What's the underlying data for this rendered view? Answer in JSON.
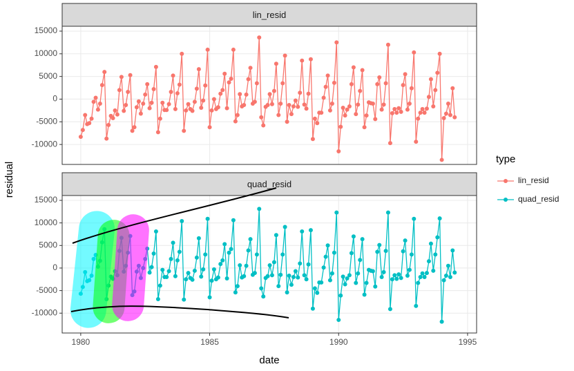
{
  "chart_data": {
    "type": "line",
    "x_label": "date",
    "y_label": "residual",
    "legend_title": "type",
    "x": [
      1980.0,
      1980.08,
      1980.17,
      1980.25,
      1980.33,
      1980.42,
      1980.5,
      1980.58,
      1980.67,
      1980.75,
      1980.83,
      1980.92,
      1981.0,
      1981.08,
      1981.17,
      1981.25,
      1981.33,
      1981.42,
      1981.5,
      1981.58,
      1981.67,
      1981.75,
      1981.83,
      1981.92,
      1982.0,
      1982.08,
      1982.17,
      1982.25,
      1982.33,
      1982.42,
      1982.5,
      1982.58,
      1982.67,
      1982.75,
      1982.83,
      1982.92,
      1983.0,
      1983.08,
      1983.17,
      1983.25,
      1983.33,
      1983.42,
      1983.5,
      1983.58,
      1983.67,
      1983.75,
      1983.83,
      1983.92,
      1984.0,
      1984.08,
      1984.17,
      1984.25,
      1984.33,
      1984.42,
      1984.5,
      1984.58,
      1984.67,
      1984.75,
      1984.83,
      1984.92,
      1985.0,
      1985.08,
      1985.17,
      1985.25,
      1985.33,
      1985.42,
      1985.5,
      1985.58,
      1985.67,
      1985.75,
      1985.83,
      1985.92,
      1986.0,
      1986.08,
      1986.17,
      1986.25,
      1986.33,
      1986.42,
      1986.5,
      1986.58,
      1986.67,
      1986.75,
      1986.83,
      1986.92,
      1987.0,
      1987.08,
      1987.17,
      1987.25,
      1987.33,
      1987.42,
      1987.5,
      1987.58,
      1987.67,
      1987.75,
      1987.83,
      1987.92,
      1988.0,
      1988.08,
      1988.17,
      1988.25,
      1988.33,
      1988.42,
      1988.5,
      1988.58,
      1988.67,
      1988.75,
      1988.83,
      1988.92,
      1989.0,
      1989.08,
      1989.17,
      1989.25,
      1989.33,
      1989.42,
      1989.5,
      1989.58,
      1989.67,
      1989.75,
      1989.83,
      1989.92,
      1990.0,
      1990.08,
      1990.17,
      1990.25,
      1990.33,
      1990.42,
      1990.5,
      1990.58,
      1990.67,
      1990.75,
      1990.83,
      1990.92,
      1991.0,
      1991.08,
      1991.17,
      1991.25,
      1991.33,
      1991.42,
      1991.5,
      1991.58,
      1991.67,
      1991.75,
      1991.83,
      1991.92,
      1992.0,
      1992.08,
      1992.17,
      1992.25,
      1992.33,
      1992.42,
      1992.5,
      1992.58,
      1992.67,
      1992.75,
      1992.83,
      1992.92,
      1993.0,
      1993.08,
      1993.17,
      1993.25,
      1993.33,
      1993.42,
      1993.5,
      1993.58,
      1993.67,
      1993.75,
      1993.83,
      1993.92,
      1994.0,
      1994.08,
      1994.17,
      1994.25,
      1994.33,
      1994.42,
      1994.5
    ],
    "series": [
      {
        "name": "lin_resid",
        "color": "#F8766D",
        "values": [
          -8300,
          -6800,
          -3500,
          -5500,
          -5300,
          -4300,
          -600,
          300,
          -2300,
          -1000,
          3100,
          6000,
          -8700,
          -5700,
          -3700,
          -4200,
          -2500,
          -3400,
          2000,
          4900,
          -2600,
          -1300,
          1600,
          5300,
          -7000,
          -6200,
          -1800,
          -500,
          -3200,
          -1000,
          1000,
          3300,
          -2000,
          -800,
          2200,
          7100,
          -7300,
          -4300,
          -800,
          -2400,
          -2400,
          -1100,
          1600,
          5200,
          -2200,
          1300,
          3200,
          10000,
          -7000,
          -2500,
          -1100,
          -2200,
          -2600,
          -600,
          2300,
          6600,
          -1900,
          -300,
          3000,
          10900,
          -6200,
          -2500,
          0,
          -2200,
          -1800,
          1200,
          2000,
          5600,
          -2000,
          3700,
          4500,
          10900,
          -4900,
          -3500,
          1100,
          -1600,
          -1300,
          1000,
          4400,
          6900,
          -1000,
          -600,
          3500,
          13600,
          -4000,
          -5800,
          -1700,
          -1300,
          1100,
          -1100,
          1800,
          7800,
          -3500,
          -1000,
          3500,
          9600,
          -5000,
          -1300,
          -3300,
          -1600,
          -300,
          -1700,
          1400,
          8500,
          -1200,
          -2100,
          1200,
          8800,
          -8800,
          -4300,
          -5300,
          -3000,
          -3000,
          300,
          2700,
          5200,
          -2500,
          -1000,
          3600,
          12500,
          -11500,
          -6100,
          -1900,
          -3600,
          -2300,
          -1600,
          3300,
          7000,
          -3300,
          -1200,
          1800,
          6400,
          -6200,
          -3600,
          -700,
          -900,
          -1000,
          -4400,
          3300,
          4800,
          -2300,
          -1200,
          3500,
          12000,
          -9700,
          -3100,
          -2200,
          -3000,
          -2000,
          -2800,
          3100,
          5500,
          -2300,
          -1000,
          2400,
          10300,
          -9400,
          -4300,
          -3000,
          -2200,
          -3000,
          -2100,
          500,
          4400,
          -1600,
          2000,
          5800,
          10000,
          -13400,
          -4200,
          -3200,
          -1000,
          -3500,
          2400,
          -4000
        ]
      },
      {
        "name": "quad_resid",
        "color": "#00BFC4",
        "values": [
          -5700,
          -4200,
          -900,
          -2900,
          -2700,
          -1700,
          2000,
          2900,
          300,
          1600,
          5700,
          8600,
          -6900,
          -3900,
          -1900,
          -2400,
          -700,
          -1600,
          3800,
          6700,
          -800,
          500,
          3400,
          7100,
          -6000,
          -5200,
          -800,
          500,
          -2200,
          0,
          2000,
          4300,
          -1000,
          200,
          3200,
          8100,
          -6900,
          -3900,
          -400,
          -2000,
          -2000,
          -700,
          2000,
          5600,
          -1800,
          1700,
          3600,
          10400,
          -7000,
          -2500,
          -1100,
          -2200,
          -2600,
          -600,
          2300,
          6600,
          -1900,
          -300,
          3000,
          10900,
          -6500,
          -2800,
          -300,
          -2500,
          -2100,
          900,
          1700,
          5300,
          -2300,
          3400,
          4200,
          10600,
          -5400,
          -4000,
          600,
          -2100,
          -1800,
          500,
          3900,
          6400,
          -1500,
          -1100,
          3000,
          13100,
          -4500,
          -6300,
          -2200,
          -1800,
          600,
          -1600,
          1300,
          7300,
          -4000,
          -1500,
          3000,
          9100,
          -5400,
          -1700,
          -3700,
          -2000,
          -700,
          -2100,
          1000,
          8100,
          -1600,
          -2500,
          800,
          8400,
          -9000,
          -4500,
          -5500,
          -3200,
          -3200,
          100,
          2500,
          5000,
          -2700,
          -1200,
          3400,
          12300,
          -11500,
          -6100,
          -1900,
          -3600,
          -2300,
          -1600,
          3300,
          7000,
          -3300,
          -1200,
          1800,
          6400,
          -5900,
          -3300,
          -400,
          -600,
          -700,
          -4100,
          3600,
          5100,
          -2000,
          -900,
          3800,
          12300,
          -9100,
          -2500,
          -1600,
          -2400,
          -1400,
          -2200,
          3700,
          6100,
          -1700,
          -400,
          3000,
          10900,
          -8400,
          -3300,
          -2000,
          -1200,
          -2000,
          -1100,
          1500,
          5400,
          -600,
          3000,
          6800,
          11000,
          -11900,
          -2700,
          -1700,
          500,
          -2000,
          3900,
          -1000
        ]
      }
    ],
    "xlim": [
      1979.28,
      1995.35
    ],
    "xticks": [
      1980,
      1985,
      1990,
      1995
    ],
    "ylim": [
      -14400,
      16070
    ],
    "yticks": [
      -10000,
      -5000,
      0,
      5000,
      10000,
      15000
    ],
    "grid": true,
    "legend": "right"
  }
}
